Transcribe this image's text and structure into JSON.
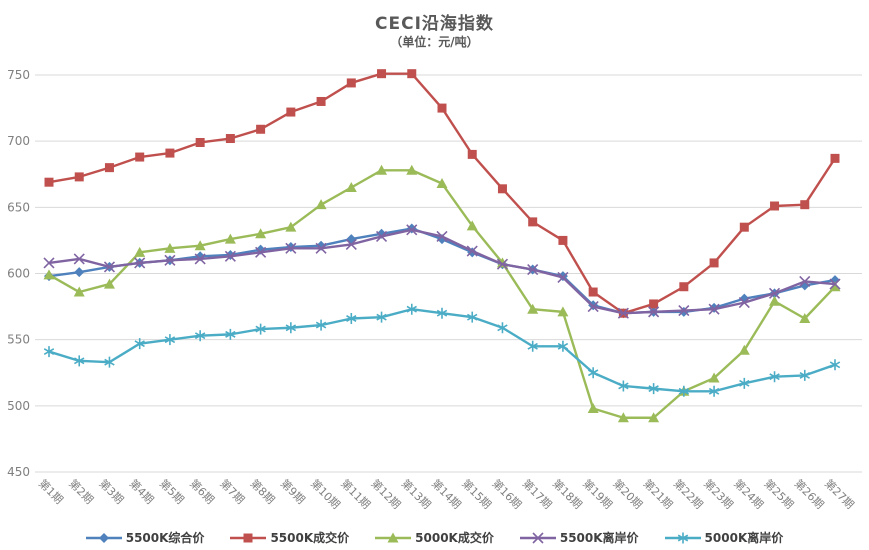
{
  "chart_data": {
    "type": "line",
    "title": "CECI沿海指数",
    "subtitle": "（单位：元/吨）",
    "ylim": [
      450,
      750
    ],
    "yticks": [
      450,
      500,
      550,
      600,
      650,
      700,
      750
    ],
    "grid": true,
    "legend_position": "bottom",
    "axis_color": "#808080",
    "grid_color": "#d9d9d9",
    "categories": [
      "第1期",
      "第2期",
      "第3期",
      "第4期",
      "第5期",
      "第6期",
      "第7期",
      "第8期",
      "第9期",
      "第10期",
      "第11期",
      "第12期",
      "第13期",
      "第14期",
      "第15期",
      "第16期",
      "第17期",
      "第18期",
      "第19期",
      "第20期",
      "第21期",
      "第22期",
      "第23期",
      "第24期",
      "第25期",
      "第26期",
      "第27期"
    ],
    "series": [
      {
        "name": "5500K综合价",
        "color": "#4f81bd",
        "marker": "diamond",
        "values": [
          598,
          601,
          605,
          608,
          610,
          613,
          614,
          618,
          620,
          621,
          626,
          630,
          634,
          626,
          616,
          607,
          603,
          598,
          576,
          570,
          571,
          571,
          574,
          581,
          585,
          591,
          595
        ]
      },
      {
        "name": "5500K成交价",
        "color": "#c0504d",
        "marker": "square",
        "values": [
          669,
          673,
          680,
          688,
          691,
          699,
          702,
          709,
          722,
          730,
          744,
          751,
          751,
          725,
          690,
          664,
          639,
          625,
          586,
          570,
          577,
          590,
          608,
          635,
          651,
          652,
          687
        ]
      },
      {
        "name": "5000K成交价",
        "color": "#9bbb59",
        "marker": "triangle",
        "values": [
          599,
          586,
          592,
          616,
          619,
          621,
          626,
          630,
          635,
          652,
          665,
          678,
          678,
          668,
          636,
          608,
          573,
          571,
          498,
          491,
          491,
          511,
          521,
          542,
          579,
          566,
          590
        ]
      },
      {
        "name": "5500K离岸价",
        "color": "#8064a2",
        "marker": "x",
        "values": [
          608,
          611,
          605,
          608,
          610,
          611,
          613,
          616,
          619,
          619,
          622,
          628,
          633,
          628,
          617,
          607,
          603,
          597,
          575,
          570,
          571,
          572,
          573,
          578,
          585,
          594,
          592
        ]
      },
      {
        "name": "5000K离岸价",
        "color": "#4bacc6",
        "marker": "asterisk",
        "values": [
          541,
          534,
          533,
          547,
          550,
          553,
          554,
          558,
          559,
          561,
          566,
          567,
          573,
          570,
          567,
          559,
          545,
          545,
          525,
          515,
          513,
          511,
          511,
          517,
          522,
          523,
          531
        ]
      }
    ]
  }
}
